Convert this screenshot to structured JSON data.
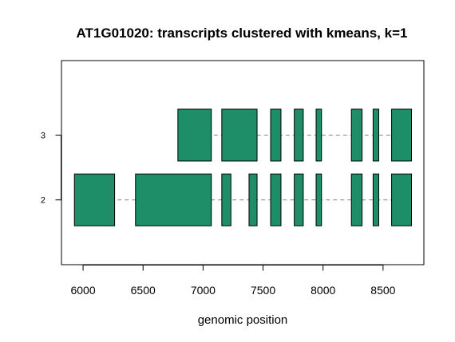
{
  "chart_data": {
    "type": "gene-structure",
    "title": "AT1G01020: transcripts clustered with kmeans, k=1",
    "xlabel": "genomic position",
    "ylabel": "",
    "xlim": [
      5820,
      8840
    ],
    "ylim": [
      1,
      4.15
    ],
    "x_ticks": [
      6000,
      6500,
      7000,
      7500,
      8000,
      8500
    ],
    "y_ticks": [
      2,
      3
    ],
    "exon_color": "#1E8E68",
    "intron_color": "#888888",
    "half_height": 0.4,
    "transcripts": [
      {
        "y": 2,
        "exons": [
          [
            5928,
            6263
          ],
          [
            6437,
            7069
          ],
          [
            7156,
            7232
          ],
          [
            7383,
            7450
          ],
          [
            7563,
            7649
          ],
          [
            7760,
            7835
          ],
          [
            7942,
            7987
          ],
          [
            8236,
            8325
          ],
          [
            8417,
            8464
          ],
          [
            8571,
            8737
          ]
        ]
      },
      {
        "y": 3,
        "exons": [
          [
            6790,
            7069
          ],
          [
            7156,
            7450
          ],
          [
            7563,
            7649
          ],
          [
            7760,
            7835
          ],
          [
            7942,
            7987
          ],
          [
            8236,
            8325
          ],
          [
            8417,
            8464
          ],
          [
            8571,
            8737
          ]
        ]
      }
    ]
  }
}
